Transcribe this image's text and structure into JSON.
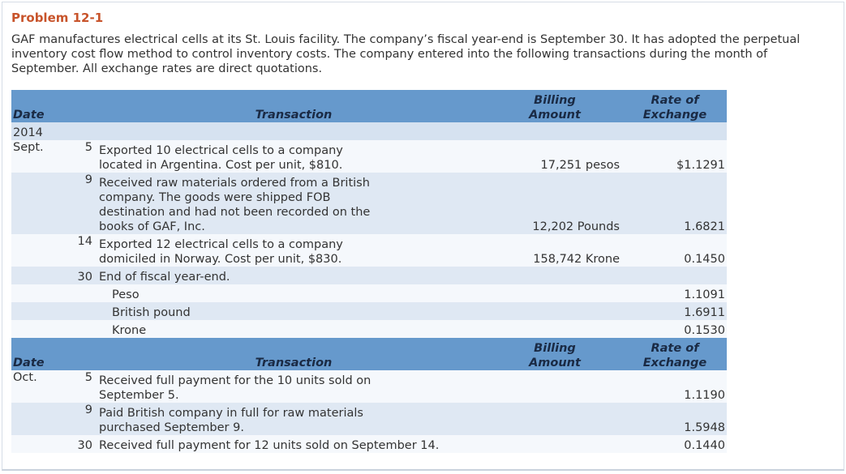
{
  "problem_title": "Problem 12-1",
  "intro": "GAF manufactures electrical cells at its St. Louis facility. The company’s fiscal year-end is September 30. It has adopted the perpetual inventory cost flow method to control inventory costs. The company entered into the following transactions during the month of September. All exchange rates are direct quotations.",
  "headers": {
    "date": "Date",
    "transaction": "Transaction",
    "billing_line1": "Billing",
    "billing_line2": "Amount",
    "rate_line1": "Rate of",
    "rate_line2": "Exchange"
  },
  "year": "2014",
  "september": {
    "month": "Sept.",
    "rows": [
      {
        "day": "5",
        "line1": "Exported 10 electrical cells to a company",
        "line2": "located in Argentina. Cost per unit, $810.",
        "billing": "17,251 pesos",
        "rate": "$1.1291"
      },
      {
        "day": "9",
        "line1": "Received raw materials ordered from a British",
        "line2": "company. The goods were shipped FOB",
        "line3": "destination and had not been recorded on the",
        "line4": "books of GAF, Inc.",
        "billing": "12,202 Pounds",
        "rate": "1.6821"
      },
      {
        "day": "14",
        "line1": "Exported 12 electrical cells to a company",
        "line2": "domiciled in Norway. Cost per unit, $830.",
        "billing": "158,742 Krone",
        "rate": "0.1450"
      },
      {
        "day": "30",
        "line1": "End of fiscal year-end."
      }
    ],
    "year_end_rates": [
      {
        "currency": "Peso",
        "rate": "1.1091"
      },
      {
        "currency": "British pound",
        "rate": "1.6911"
      },
      {
        "currency": "Krone",
        "rate": "0.1530"
      }
    ]
  },
  "october": {
    "month": "Oct.",
    "rows": [
      {
        "day": "5",
        "line1": "Received full payment for the 10 units sold on",
        "line2": "September 5.",
        "rate": "1.1190"
      },
      {
        "day": "9",
        "line1": "Paid British company in full for raw materials",
        "line2": "purchased September 9.",
        "rate": "1.5948"
      },
      {
        "day": "30",
        "line1": "Received full payment for 12 units sold on September 14.",
        "rate": "0.1440"
      }
    ]
  }
}
